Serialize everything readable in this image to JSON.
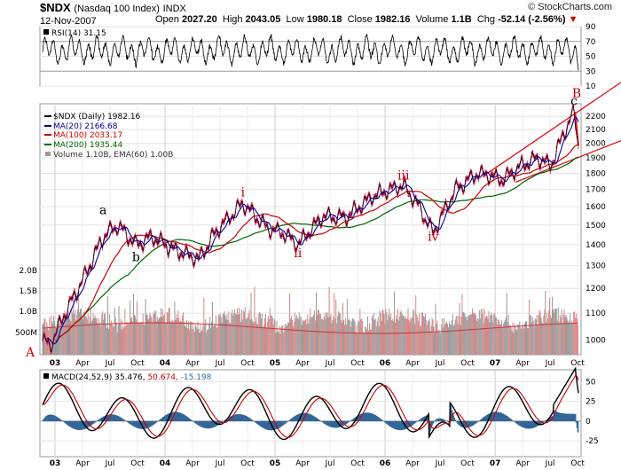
{
  "header": {
    "symbol": "$NDX",
    "name": "(Nasdaq 100 Index)",
    "exchange": "INDX",
    "date": "12-Nov-2007",
    "open_label": "Open",
    "open": "2027.20",
    "high_label": "High",
    "high": "2043.05",
    "low_label": "Low",
    "low": "1980.18",
    "close_label": "Close",
    "close": "1982.16",
    "volume_label": "Volume",
    "volume": "1.1B",
    "chg_label": "Chg",
    "chg": "-52.14 (-2.56%)",
    "chg_marker": "▼",
    "brand": "© StockCharts.com"
  },
  "chart_data": [
    {
      "type": "line",
      "panel": "rsi",
      "legend": "RSI(14) 31.15",
      "y_ticks": [
        10,
        30,
        50,
        70,
        90
      ],
      "ylim": [
        10,
        90
      ],
      "reference_lines": [
        30,
        70
      ]
    },
    {
      "type": "line",
      "panel": "price",
      "x_ticks": [
        "03",
        "Apr",
        "Jul",
        "Oct",
        "04",
        "Apr",
        "Jul",
        "Oct",
        "05",
        "Apr",
        "Jul",
        "Oct",
        "06",
        "Apr",
        "Jul",
        "Oct",
        "07",
        "Apr",
        "Jul",
        "Oct"
      ],
      "price_ticks": [
        1000,
        1100,
        1200,
        1300,
        1400,
        1500,
        1600,
        1700,
        1800,
        1900,
        2000,
        2100,
        2200
      ],
      "ylim": [
        950,
        2300
      ],
      "volume_ticks": [
        "500M",
        "1.0B",
        "1.5B",
        "2.0B"
      ],
      "volume_label": "Volume 1.10B, EMA(60) 1.00B",
      "series": [
        {
          "name": "$NDX (Daily) 1982.16",
          "color": "#000000"
        },
        {
          "name": "MA(20) 2166.68",
          "color": "#000099"
        },
        {
          "name": "MA(100) 2033.17",
          "color": "#cc0000"
        },
        {
          "name": "MA(200) 1935.44",
          "color": "#006600"
        }
      ],
      "key_points": [
        {
          "t": 0.0,
          "v": 1000
        },
        {
          "t": 0.07,
          "v": 980
        },
        {
          "t": 0.18,
          "v": 1080
        },
        {
          "t": 0.38,
          "v": 1250
        },
        {
          "t": 0.55,
          "v": 1440
        },
        {
          "t": 0.68,
          "v": 1500
        },
        {
          "t": 0.85,
          "v": 1400
        },
        {
          "t": 1.0,
          "v": 1440
        },
        {
          "t": 1.18,
          "v": 1380
        },
        {
          "t": 1.42,
          "v": 1330
        },
        {
          "t": 1.58,
          "v": 1470
        },
        {
          "t": 1.82,
          "v": 1620
        },
        {
          "t": 2.05,
          "v": 1480
        },
        {
          "t": 2.18,
          "v": 1460
        },
        {
          "t": 2.32,
          "v": 1400
        },
        {
          "t": 2.55,
          "v": 1550
        },
        {
          "t": 2.75,
          "v": 1540
        },
        {
          "t": 3.0,
          "v": 1660
        },
        {
          "t": 3.28,
          "v": 1730
        },
        {
          "t": 3.42,
          "v": 1600
        },
        {
          "t": 3.55,
          "v": 1460
        },
        {
          "t": 3.75,
          "v": 1700
        },
        {
          "t": 3.95,
          "v": 1800
        },
        {
          "t": 4.05,
          "v": 1790
        },
        {
          "t": 4.18,
          "v": 1760
        },
        {
          "t": 4.35,
          "v": 1850
        },
        {
          "t": 4.5,
          "v": 1900
        },
        {
          "t": 4.62,
          "v": 1850
        },
        {
          "t": 4.75,
          "v": 2100
        },
        {
          "t": 4.83,
          "v": 2230
        },
        {
          "t": 4.86,
          "v": 2050
        },
        {
          "t": 4.87,
          "v": 1982
        }
      ],
      "annotations": [
        {
          "text": "a",
          "t": 0.55,
          "v": 1560,
          "color": "#000000"
        },
        {
          "text": "b",
          "t": 0.85,
          "v": 1320,
          "color": "#000000"
        },
        {
          "text": "c",
          "t": 4.83,
          "v": 2290,
          "color": "#000000"
        },
        {
          "text": "i",
          "t": 1.82,
          "v": 1660,
          "color": "#cc0000"
        },
        {
          "text": "ii",
          "t": 2.32,
          "v": 1340,
          "color": "#cc0000"
        },
        {
          "text": "iii",
          "t": 3.28,
          "v": 1760,
          "color": "#cc0000"
        },
        {
          "text": "iv",
          "t": 3.55,
          "v": 1420,
          "color": "#cc0000"
        },
        {
          "text": "A",
          "t": -0.07,
          "v": 960,
          "color": "#cc0000"
        },
        {
          "text": "B",
          "t": 4.84,
          "v": 2360,
          "color": "#cc0000"
        }
      ]
    },
    {
      "type": "line",
      "panel": "macd",
      "legend": "MACD(24,52,9)",
      "macd": "35.476",
      "signal": "50.674",
      "histogram": "-15.198",
      "y_ticks": [
        -25,
        0,
        25,
        50
      ],
      "ylim": [
        -45,
        65
      ]
    }
  ]
}
